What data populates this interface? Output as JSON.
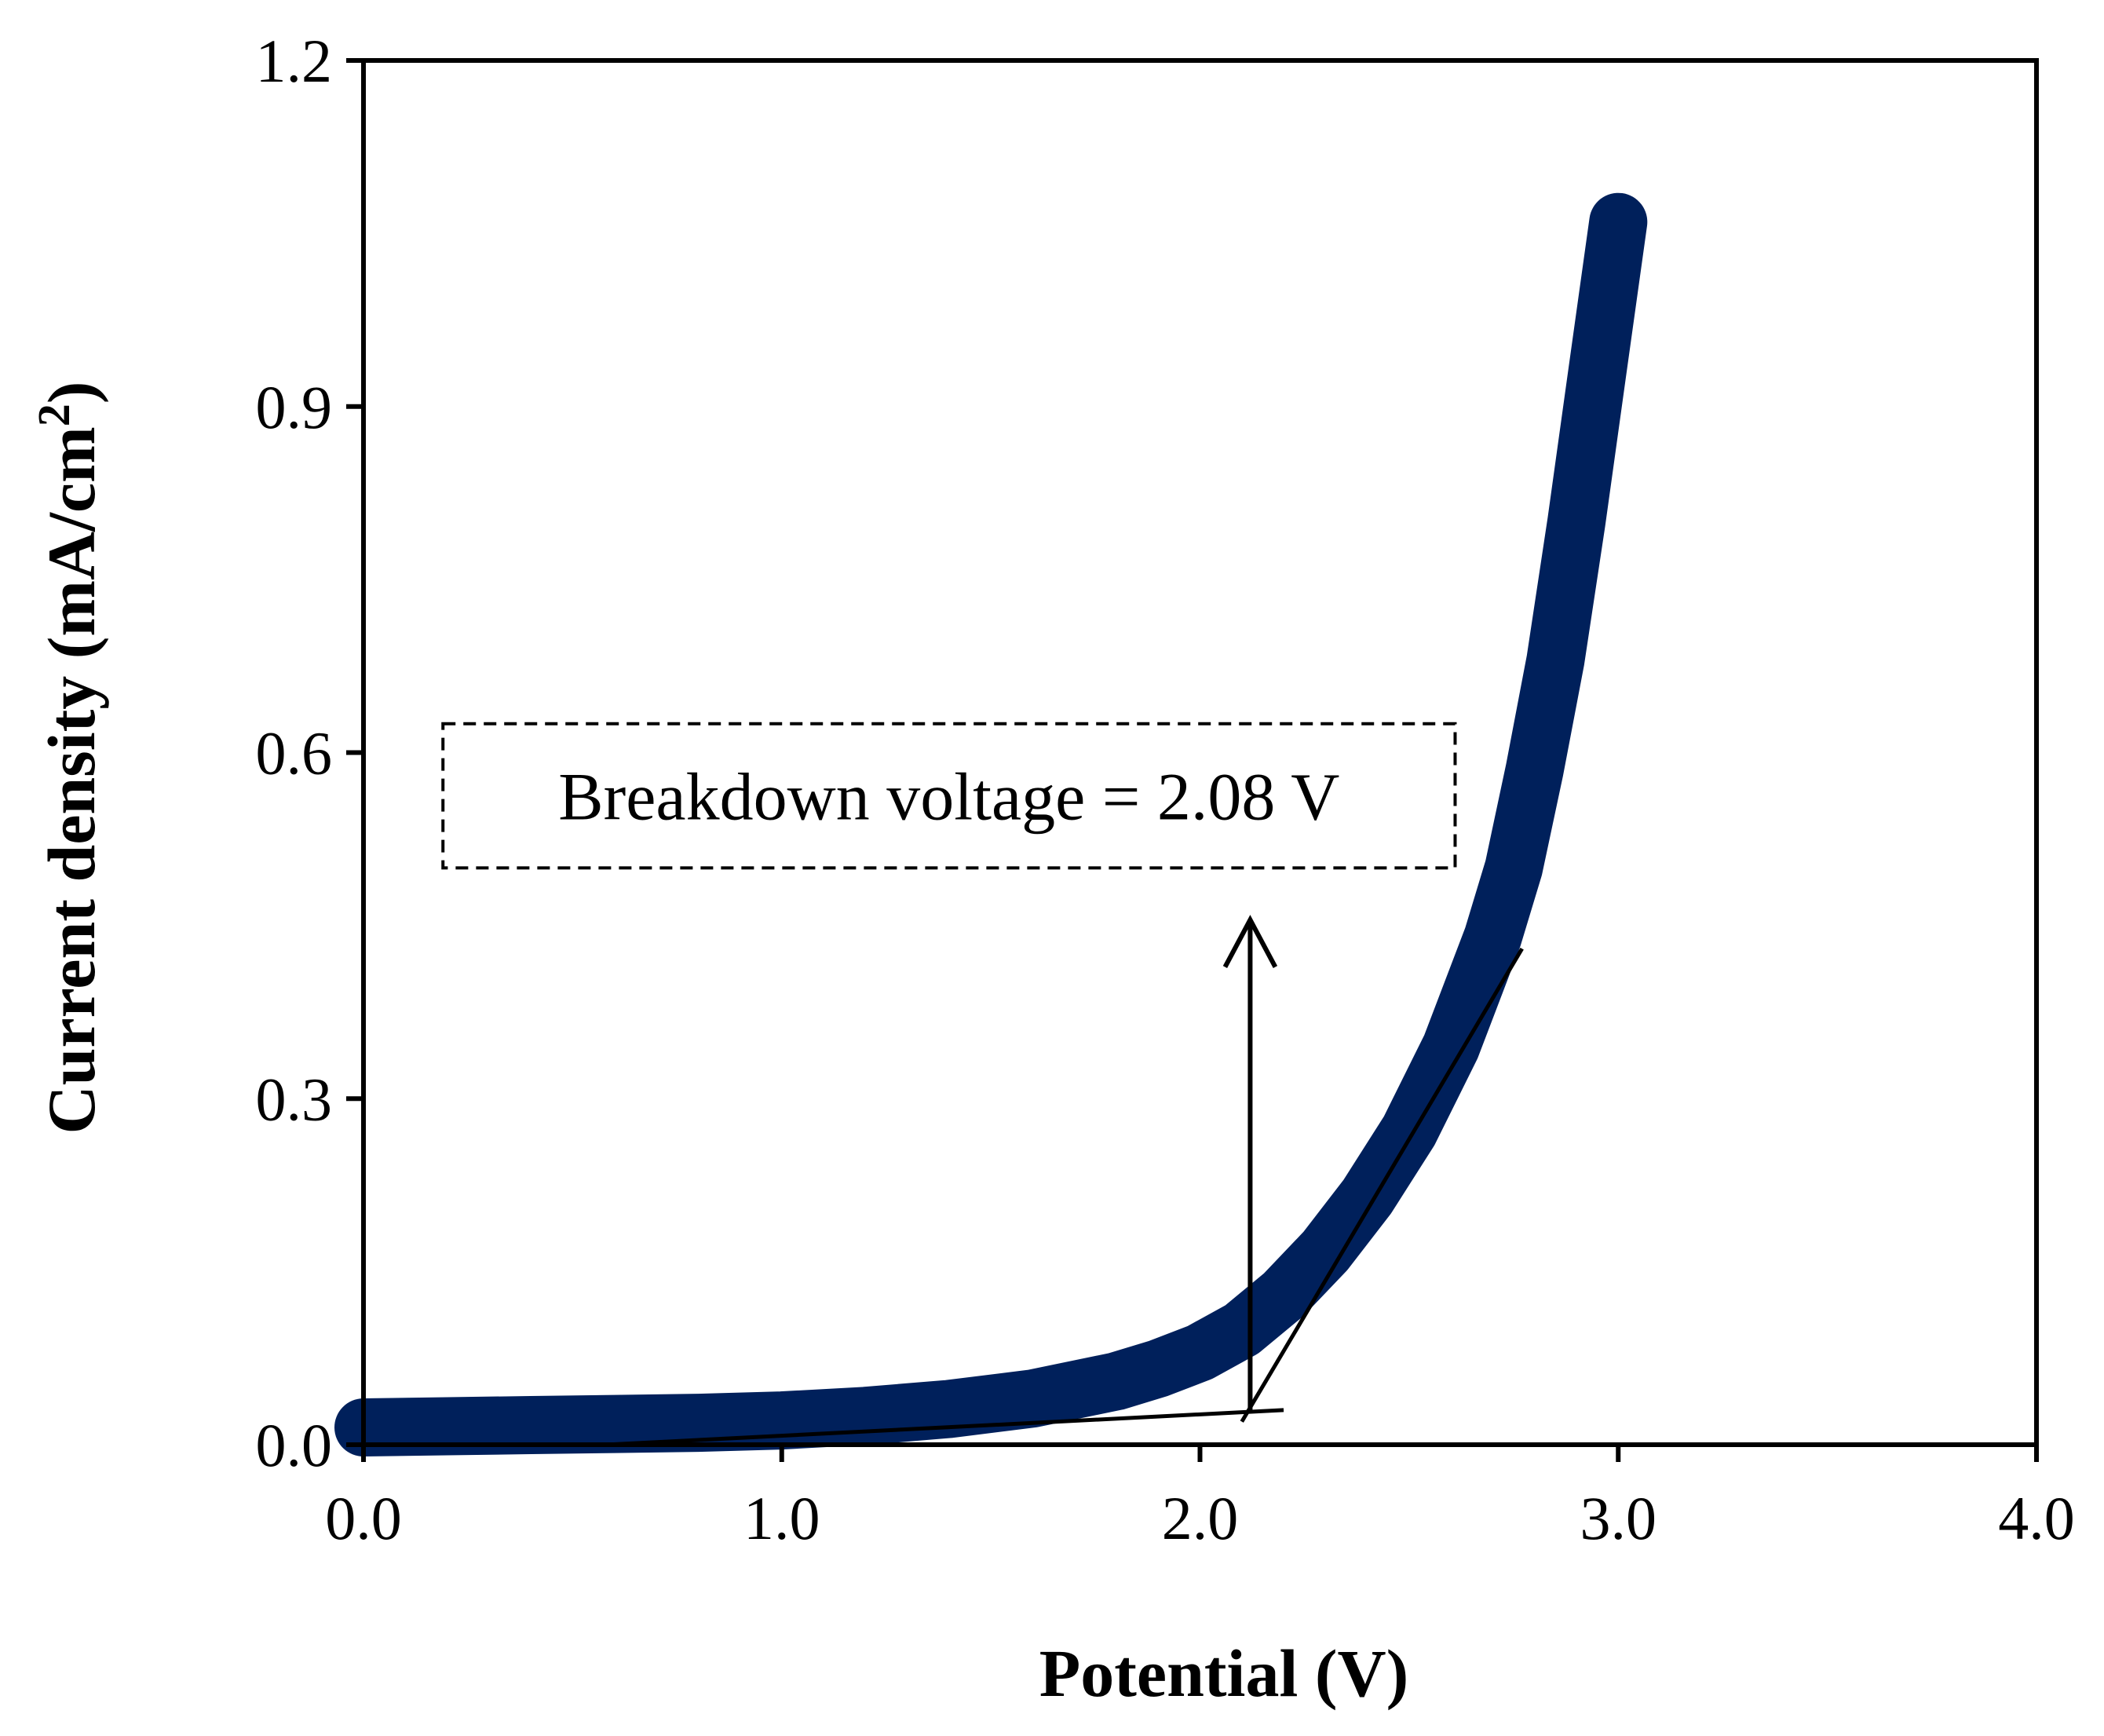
{
  "chart_data": {
    "type": "line",
    "title": "",
    "xlabel": "Potential (V)",
    "ylabel_main": "Current density (mA/cm",
    "ylabel_sup": "2",
    "ylabel_end": ")",
    "xlim": [
      0.0,
      4.0
    ],
    "ylim": [
      0.0,
      1.2
    ],
    "xticks": [
      0.0,
      1.0,
      2.0,
      3.0,
      4.0
    ],
    "xtick_labels": [
      "0.0",
      "1.0",
      "2.0",
      "3.0",
      "4.0"
    ],
    "yticks": [
      0.0,
      0.3,
      0.6,
      0.9,
      1.2
    ],
    "ytick_labels": [
      "0.0",
      "0.3",
      "0.6",
      "0.9",
      "1.2"
    ],
    "grid": false,
    "series": [
      {
        "name": "Current density",
        "color": "#00205b",
        "x": [
          0.0,
          0.2,
          0.4,
          0.6,
          0.8,
          1.0,
          1.2,
          1.4,
          1.6,
          1.8,
          1.9,
          2.0,
          2.1,
          2.2,
          2.3,
          2.4,
          2.5,
          2.6,
          2.7,
          2.75,
          2.8,
          2.85,
          2.9,
          2.95,
          3.0
        ],
        "y": [
          0.015,
          0.016,
          0.017,
          0.018,
          0.019,
          0.021,
          0.025,
          0.031,
          0.04,
          0.055,
          0.066,
          0.08,
          0.1,
          0.13,
          0.168,
          0.215,
          0.272,
          0.345,
          0.44,
          0.5,
          0.585,
          0.68,
          0.8,
          0.93,
          1.06
        ]
      }
    ],
    "tangent_lines": [
      {
        "name": "baseline-fit",
        "x": [
          0.58,
          2.2
        ],
        "y": [
          0.0,
          0.03
        ]
      },
      {
        "name": "steep-fit",
        "x": [
          2.1,
          2.77
        ],
        "y": [
          0.02,
          0.43
        ]
      }
    ],
    "arrow": {
      "x": 2.12,
      "y_from": 0.03,
      "y_to": 0.455
    },
    "annotation": {
      "text": "Breakdown voltage = 2.08 V",
      "x_left": 0.19,
      "x_right": 2.61,
      "y_top": 0.625,
      "y_bottom": 0.5
    }
  }
}
